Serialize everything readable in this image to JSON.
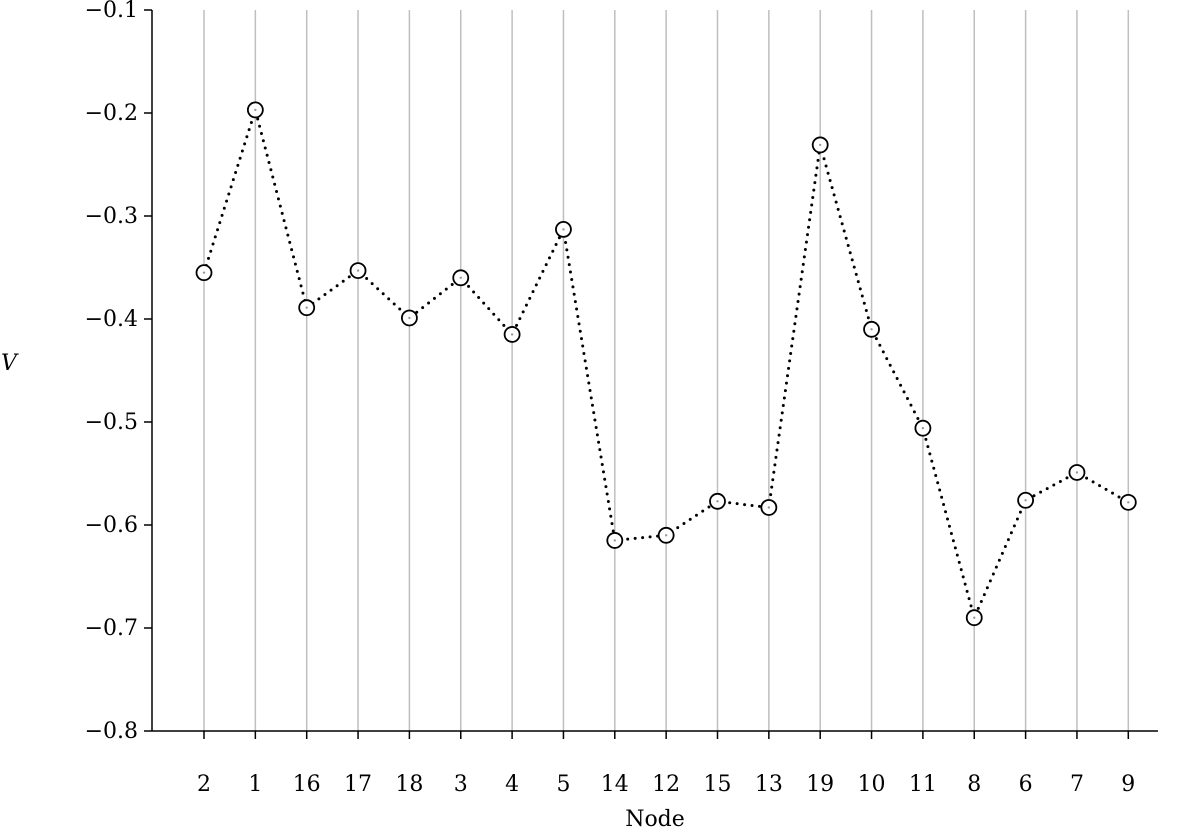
{
  "chart_data": {
    "type": "line",
    "xlabel": "Node",
    "ylabel": "V",
    "categories": [
      "2",
      "1",
      "16",
      "17",
      "18",
      "3",
      "4",
      "5",
      "14",
      "12",
      "15",
      "13",
      "19",
      "10",
      "11",
      "8",
      "6",
      "7",
      "9"
    ],
    "series": [
      {
        "values": [
          -0.355,
          -0.197,
          -0.389,
          -0.353,
          -0.399,
          -0.36,
          -0.415,
          -0.313,
          -0.615,
          -0.61,
          -0.577,
          -0.583,
          -0.231,
          -0.41,
          -0.506,
          -0.69,
          -0.576,
          -0.549,
          -0.578
        ]
      }
    ],
    "ylim": [
      -0.8,
      -0.1
    ],
    "yticks": [
      "−0.8",
      "−0.7",
      "−0.6",
      "−0.5",
      "−0.4",
      "−0.3",
      "−0.2",
      "−0.1"
    ],
    "ytick_values": [
      -0.8,
      -0.7,
      -0.6,
      -0.5,
      -0.4,
      -0.3,
      -0.2,
      -0.1
    ],
    "grid": "vertical",
    "line_style": "dotted",
    "marker": "circle",
    "colors": {
      "line": "#000000",
      "grid": "#bfbfbf",
      "axis": "#000000"
    }
  }
}
